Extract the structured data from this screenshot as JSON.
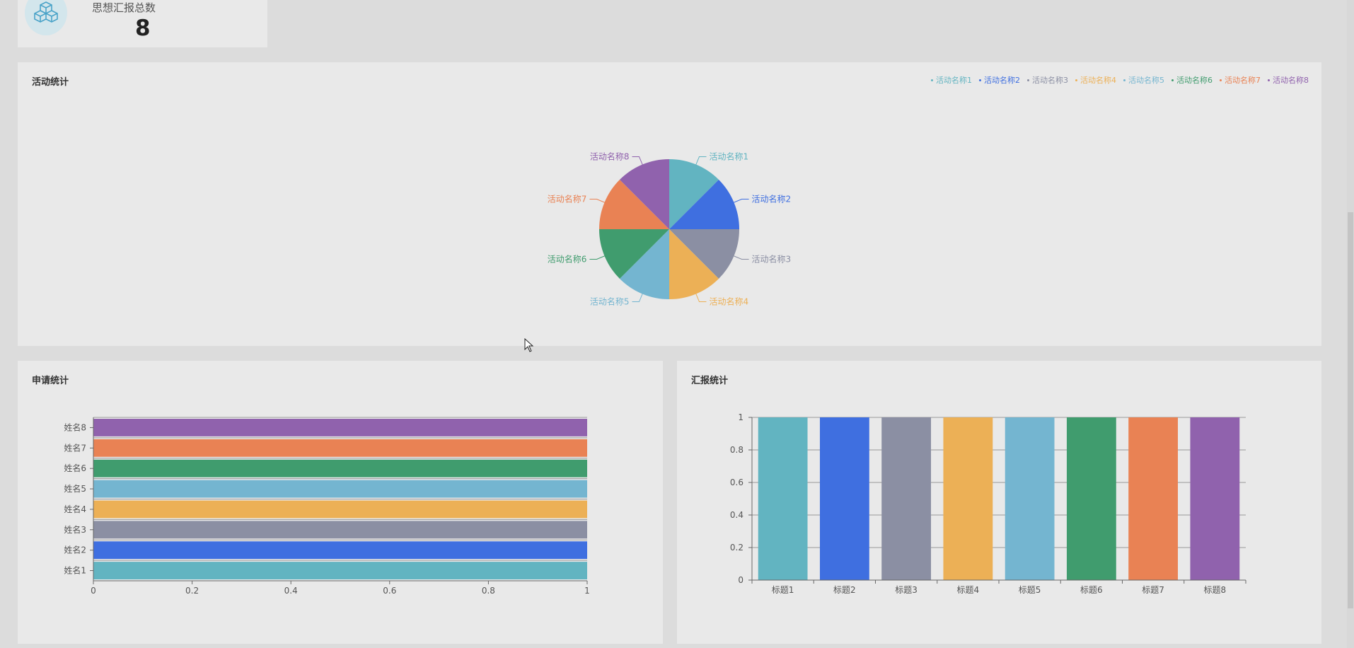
{
  "stat_card": {
    "label": "思想汇报总数",
    "value": "8",
    "icon": "cubes-icon"
  },
  "activity_panel": {
    "title": "活动统计",
    "chart_data": {
      "type": "pie",
      "title": "活动统计",
      "categories": [
        "活动名称1",
        "活动名称2",
        "活动名称3",
        "活动名称4",
        "活动名称5",
        "活动名称6",
        "活动名称7",
        "活动名称8"
      ],
      "values": [
        1,
        1,
        1,
        1,
        1,
        1,
        1,
        1
      ],
      "colors": [
        "#62b4c1",
        "#3f6fe0",
        "#8b8fa3",
        "#ecb056",
        "#74b5d0",
        "#409c6e",
        "#e98254",
        "#9062ad"
      ],
      "legend": "top-right"
    }
  },
  "apply_panel": {
    "title": "申请统计",
    "chart_data": {
      "type": "bar",
      "orientation": "horizontal",
      "categories": [
        "姓名1",
        "姓名2",
        "姓名3",
        "姓名4",
        "姓名5",
        "姓名6",
        "姓名7",
        "姓名8"
      ],
      "values": [
        1,
        1,
        1,
        1,
        1,
        1,
        1,
        1
      ],
      "colors": [
        "#62b4c1",
        "#3f6fe0",
        "#8b8fa3",
        "#ecb056",
        "#74b5d0",
        "#409c6e",
        "#e98254",
        "#9062ad"
      ],
      "xlim": [
        0,
        1
      ],
      "xticks": [
        "0",
        "0.2",
        "0.4",
        "0.6",
        "0.8",
        "1"
      ],
      "grid": false
    }
  },
  "report_panel": {
    "title": "汇报统计",
    "chart_data": {
      "type": "bar",
      "orientation": "vertical",
      "categories": [
        "标题1",
        "标题2",
        "标题3",
        "标题4",
        "标题5",
        "标题6",
        "标题7",
        "标题8"
      ],
      "values": [
        1,
        1,
        1,
        1,
        1,
        1,
        1,
        1
      ],
      "colors": [
        "#62b4c1",
        "#3f6fe0",
        "#8b8fa3",
        "#ecb056",
        "#74b5d0",
        "#409c6e",
        "#e98254",
        "#9062ad"
      ],
      "ylim": [
        0,
        1
      ],
      "yticks": [
        "0",
        "0.2",
        "0.4",
        "0.6",
        "0.8",
        "1"
      ],
      "grid": true
    }
  }
}
